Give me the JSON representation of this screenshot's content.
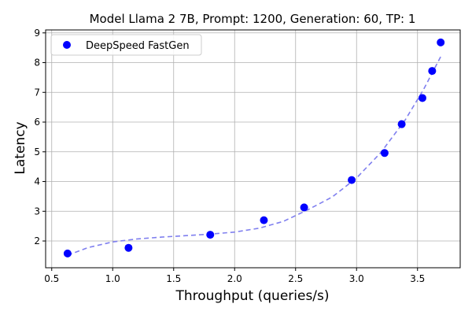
{
  "chart_data": {
    "type": "scatter",
    "title": "Model Llama 2 7B, Prompt: 1200, Generation: 60, TP: 1",
    "xlabel": "Throughput (queries/s)",
    "ylabel": "Latency",
    "xlim": [
      0.45,
      3.85
    ],
    "ylim": [
      1.1,
      9.1
    ],
    "xticks": [
      0.5,
      1.0,
      1.5,
      2.0,
      2.5,
      3.0,
      3.5
    ],
    "xtick_labels": [
      "0.5",
      "1.0",
      "1.5",
      "2.0",
      "2.5",
      "3.0",
      "3.5"
    ],
    "yticks": [
      2,
      3,
      4,
      5,
      6,
      7,
      8,
      9
    ],
    "ytick_labels": [
      "2",
      "3",
      "4",
      "5",
      "6",
      "7",
      "8",
      "9"
    ],
    "grid": true,
    "legend_position": "top-left",
    "series": [
      {
        "name": "DeepSpeed FastGen",
        "color": "#0000ff",
        "x": [
          0.63,
          1.13,
          1.8,
          2.24,
          2.57,
          2.96,
          3.23,
          3.37,
          3.54,
          3.62,
          3.69
        ],
        "y": [
          1.58,
          1.77,
          2.21,
          2.7,
          3.13,
          4.05,
          4.96,
          5.93,
          6.81,
          7.72,
          8.68
        ]
      }
    ],
    "trend_line": {
      "style": "dashed",
      "color": "#7f7fef",
      "x": [
        0.63,
        0.8,
        1.0,
        1.2,
        1.4,
        1.6,
        1.8,
        2.0,
        2.2,
        2.4,
        2.6,
        2.8,
        3.0,
        3.2,
        3.4,
        3.55,
        3.69
      ],
      "y": [
        1.52,
        1.78,
        1.97,
        2.07,
        2.13,
        2.18,
        2.23,
        2.3,
        2.43,
        2.66,
        3.05,
        3.48,
        4.12,
        4.98,
        6.08,
        7.1,
        8.2
      ]
    }
  }
}
